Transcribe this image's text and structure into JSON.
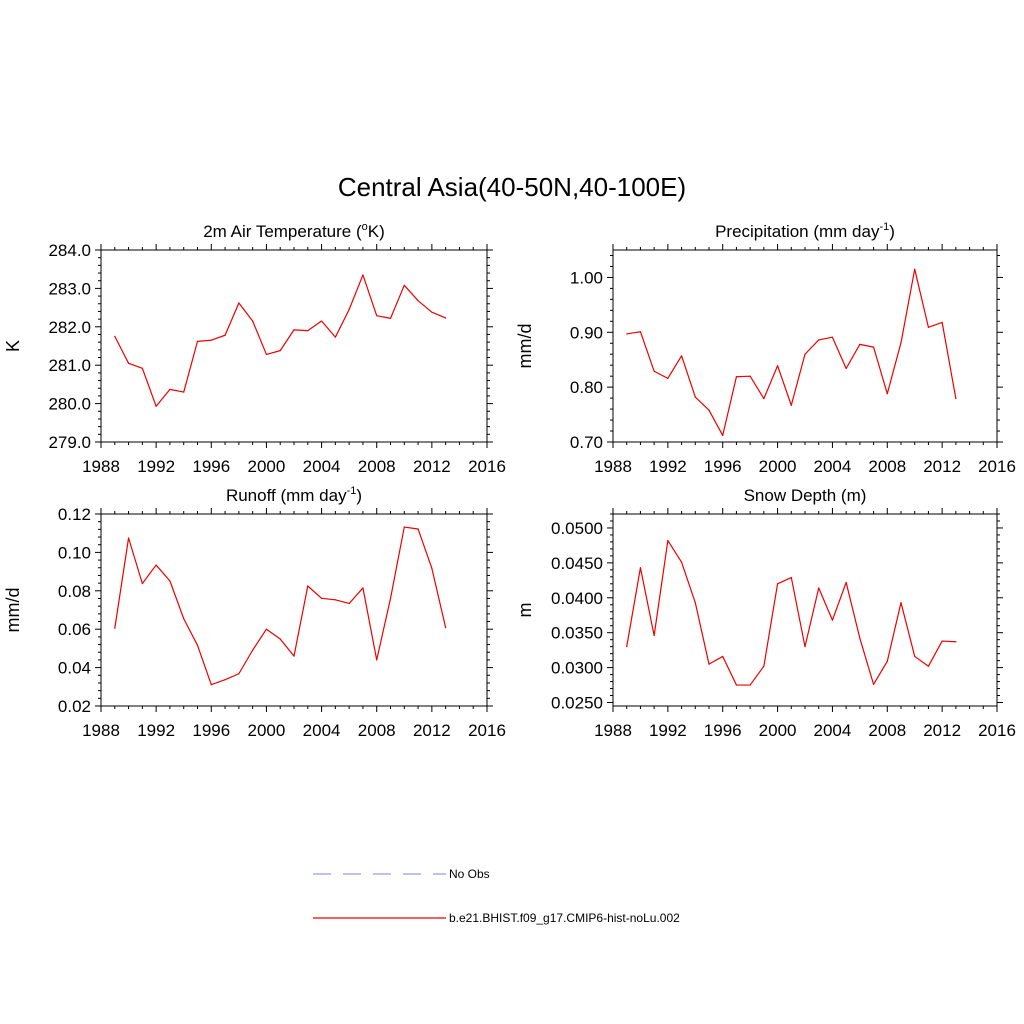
{
  "figure": {
    "title": "Central Asia(40-50N,40-100E)"
  },
  "legend": {
    "items": [
      {
        "label": "No Obs",
        "style": "dashed",
        "color": "#9999ee"
      },
      {
        "label": "b.e21.BHIST.f09_g17.CMIP6-hist-noLu.002",
        "style": "solid",
        "color": "#ee0000"
      }
    ]
  },
  "chart_data": [
    {
      "type": "line",
      "title": "2m Air Temperature (",
      "title_sup": "o",
      "title_after": "K)",
      "ylabel": "K",
      "xlim": [
        1988,
        2016
      ],
      "ylim": [
        279.0,
        284.0
      ],
      "xticks": [
        1988,
        1992,
        1996,
        2000,
        2004,
        2008,
        2012,
        2016
      ],
      "yticks": [
        "279.0",
        "280.0",
        "281.0",
        "282.0",
        "283.0",
        "284.0"
      ],
      "x": [
        1989,
        1990,
        1991,
        1992,
        1993,
        1994,
        1995,
        1996,
        1997,
        1998,
        1999,
        2000,
        2001,
        2002,
        2003,
        2004,
        2005,
        2006,
        2007,
        2008,
        2009,
        2010,
        2011,
        2012,
        2013
      ],
      "series": [
        {
          "color": "#ee0000",
          "values": [
            281.75,
            281.05,
            280.92,
            279.93,
            280.37,
            280.3,
            281.62,
            281.65,
            281.78,
            282.62,
            282.15,
            281.28,
            281.38,
            281.92,
            281.9,
            282.15,
            281.73,
            282.45,
            283.35,
            282.29,
            282.22,
            283.08,
            282.68,
            282.38,
            282.23
          ]
        }
      ]
    },
    {
      "type": "line",
      "title": "Precipitation (mm day",
      "title_sup": "-1",
      "title_after": ")",
      "ylabel": "mm/d",
      "xlim": [
        1988,
        2016
      ],
      "ylim": [
        0.7,
        1.05
      ],
      "xticks": [
        1988,
        1992,
        1996,
        2000,
        2004,
        2008,
        2012,
        2016
      ],
      "yticks": [
        "0.70",
        "0.80",
        "0.90",
        "1.00"
      ],
      "x": [
        1989,
        1990,
        1991,
        1992,
        1993,
        1994,
        1995,
        1996,
        1997,
        1998,
        1999,
        2000,
        2001,
        2002,
        2003,
        2004,
        2005,
        2006,
        2007,
        2008,
        2009,
        2010,
        2011,
        2012,
        2013
      ],
      "series": [
        {
          "color": "#ee0000",
          "values": [
            0.897,
            0.901,
            0.829,
            0.816,
            0.857,
            0.782,
            0.758,
            0.712,
            0.819,
            0.82,
            0.779,
            0.839,
            0.767,
            0.86,
            0.886,
            0.891,
            0.834,
            0.878,
            0.873,
            0.788,
            0.881,
            1.015,
            0.909,
            0.918,
            0.779
          ]
        }
      ]
    },
    {
      "type": "line",
      "title": "Runoff (mm day",
      "title_sup": "-1",
      "title_after": ")",
      "ylabel": "mm/d",
      "xlim": [
        1988,
        2016
      ],
      "ylim": [
        0.02,
        0.12
      ],
      "xticks": [
        1988,
        1992,
        1996,
        2000,
        2004,
        2008,
        2012,
        2016
      ],
      "yticks": [
        "0.02",
        "0.04",
        "0.06",
        "0.08",
        "0.10",
        "0.12"
      ],
      "x": [
        1989,
        1990,
        1991,
        1992,
        1993,
        1994,
        1995,
        1996,
        1997,
        1998,
        1999,
        2000,
        2001,
        2002,
        2003,
        2004,
        2005,
        2006,
        2007,
        2008,
        2009,
        2010,
        2011,
        2012,
        2013
      ],
      "series": [
        {
          "color": "#ee0000",
          "values": [
            0.0605,
            0.1075,
            0.0838,
            0.0934,
            0.0851,
            0.0655,
            0.0516,
            0.0311,
            0.0337,
            0.0368,
            0.0491,
            0.06,
            0.0549,
            0.046,
            0.0825,
            0.0761,
            0.0753,
            0.0734,
            0.0815,
            0.044,
            0.076,
            0.1132,
            0.1122,
            0.0917,
            0.0608
          ]
        }
      ]
    },
    {
      "type": "line",
      "title": "Snow Depth (m)",
      "title_sup": "",
      "title_after": "",
      "ylabel": "m",
      "xlim": [
        1988,
        2016
      ],
      "ylim": [
        0.0245,
        0.052
      ],
      "xticks": [
        1988,
        1992,
        1996,
        2000,
        2004,
        2008,
        2012,
        2016
      ],
      "yticks": [
        "0.0250",
        "0.0300",
        "0.0350",
        "0.0400",
        "0.0450",
        "0.0500"
      ],
      "x": [
        1989,
        1990,
        1991,
        1992,
        1993,
        1994,
        1995,
        1996,
        1997,
        1998,
        1999,
        2000,
        2001,
        2002,
        2003,
        2004,
        2005,
        2006,
        2007,
        2008,
        2009,
        2010,
        2011,
        2012,
        2013
      ],
      "series": [
        {
          "color": "#ee0000",
          "values": [
            0.033,
            0.0443,
            0.0346,
            0.0482,
            0.0451,
            0.0393,
            0.0305,
            0.0316,
            0.0275,
            0.0275,
            0.0302,
            0.042,
            0.0429,
            0.033,
            0.0414,
            0.0368,
            0.0422,
            0.0342,
            0.0276,
            0.0309,
            0.0393,
            0.0316,
            0.0302,
            0.0338,
            0.0337
          ]
        }
      ]
    }
  ]
}
